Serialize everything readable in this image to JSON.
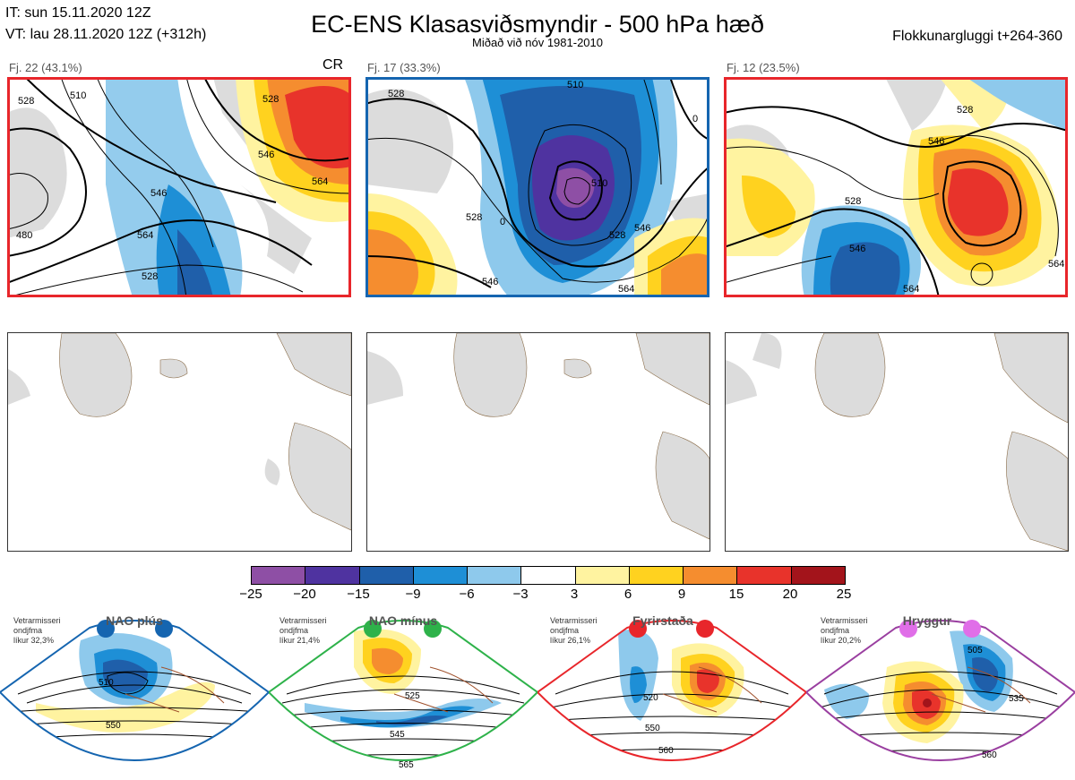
{
  "header": {
    "it": "IT: sun 15.11.2020 12Z",
    "vt": "VT: lau 28.11.2020 12Z  (+312h)",
    "title": "EC-ENS Klasasviðsmyndir - 500 hPa hæð",
    "subtitle": "Miðað við nóv 1981-2010",
    "window": "Flokkunargluggi t+264-360"
  },
  "clusters": [
    {
      "label": "Fj. 22 (43.1%)",
      "tag": "CR",
      "border_color": "#e8262b",
      "contours": [
        "528",
        "546",
        "564",
        "528",
        "510",
        "546",
        "528",
        "564",
        "480"
      ]
    },
    {
      "label": "Fj. 17 (33.3%)",
      "tag": "",
      "border_color": "#1565b0",
      "contours": [
        "528",
        "510",
        "528",
        "546",
        "0",
        "510",
        "528",
        "546",
        "564",
        "0"
      ]
    },
    {
      "label": "Fj. 12 (23.5%)",
      "tag": "",
      "border_color": "#e8262b",
      "contours": [
        "528",
        "546",
        "528",
        "546",
        "564",
        "564"
      ]
    }
  ],
  "colorbar": {
    "ticks": [
      "−25",
      "−20",
      "−15",
      "−9",
      "−6",
      "−3",
      "3",
      "6",
      "9",
      "15",
      "20",
      "25"
    ],
    "colors": [
      "#8e4fa5",
      "#4f33a0",
      "#1f5faa",
      "#1e8fd6",
      "#8ec9ec",
      "#ffffff",
      "#fff3a0",
      "#ffd21f",
      "#f58d2f",
      "#e8332b",
      "#a3141b"
    ]
  },
  "regimes": [
    {
      "name": "NAO plús",
      "stat": [
        "Vetrarmisseri",
        "ondjfma",
        "líkur 32,3%"
      ],
      "color": "#1565b0",
      "contours": [
        "510",
        "550"
      ]
    },
    {
      "name": "NAO mínus",
      "stat": [
        "Vetrarmisseri",
        "ondjfma",
        "líkur 21,4%"
      ],
      "color": "#2eb24a",
      "contours": [
        "525",
        "545",
        "565"
      ]
    },
    {
      "name": "Fyrirstaða",
      "stat": [
        "Vetrarmisseri",
        "ondjfma",
        "líkur 26,1%"
      ],
      "color": "#e8262b",
      "contours": [
        "520",
        "550",
        "560"
      ]
    },
    {
      "name": "Hryggur",
      "stat": [
        "Vetrarmisseri",
        "ondjfma",
        "líkur 20,2%"
      ],
      "color": "#e06ee8",
      "contours": [
        "505",
        "535",
        "560"
      ]
    }
  ]
}
